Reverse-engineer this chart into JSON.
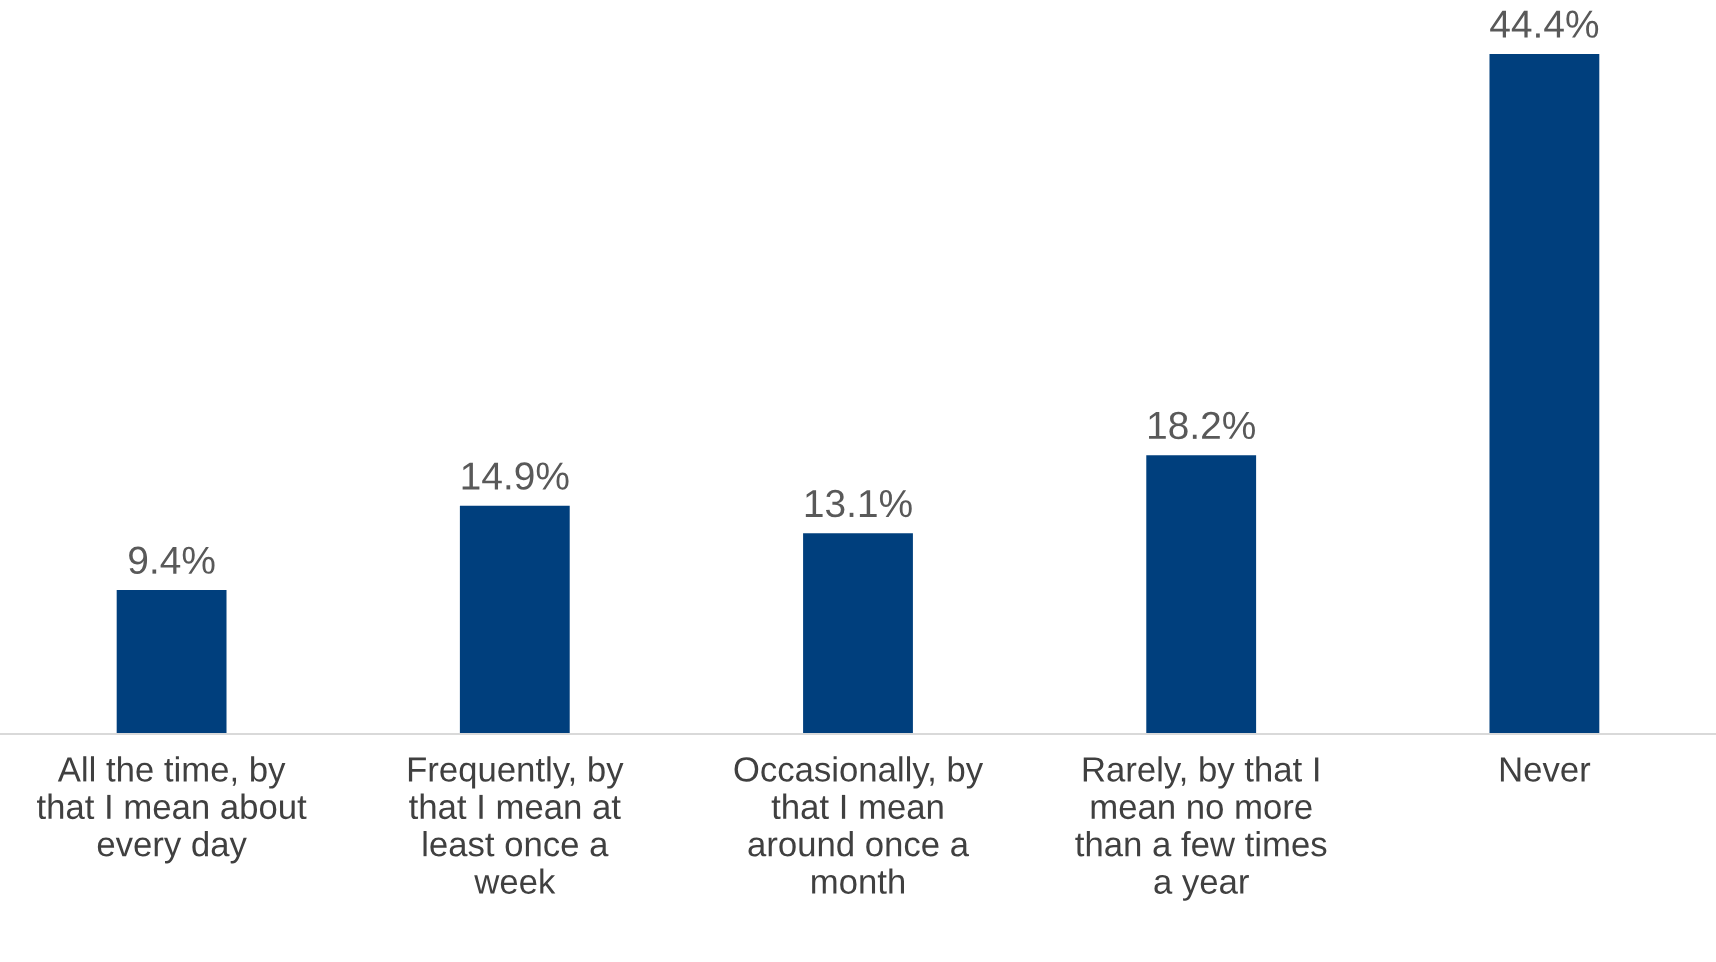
{
  "chart_data": {
    "type": "bar",
    "categories": [
      "All the time, by\nthat I mean about\nevery day",
      "Frequently, by\nthat I mean at\nleast once a\nweek",
      "Occasionally, by\nthat I mean\naround once a\nmonth",
      "Rarely, by that I\nmean no more\nthan a few times\na year",
      "Never"
    ],
    "values": [
      9.4,
      14.9,
      13.1,
      18.2,
      44.4
    ],
    "value_labels": [
      "9.4%",
      "14.9%",
      "13.1%",
      "18.2%",
      "44.4%"
    ],
    "color": "#003f7d",
    "grid": false,
    "legend": false
  }
}
